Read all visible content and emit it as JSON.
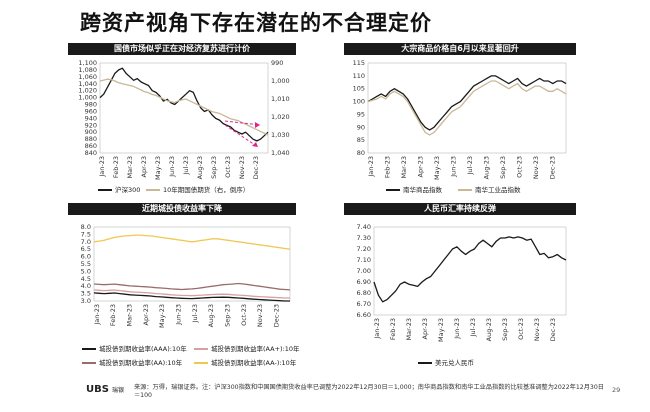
{
  "slide_title": "跨资产视角下存在潜在的不合理定价",
  "footer": {
    "logo": "UBS",
    "logo_sub": "瑞银",
    "source": "来源：万得，瑞银证券。注：沪深300指数和中国国债期货收益率已调整为2022年12月30日＝1,000；南华商品指数和南华工业品指数的比较基准调整为2022年12月30日＝100",
    "page": "29"
  },
  "colors": {
    "black": "#1a1a1a",
    "tan": "#c9b896",
    "rose": "#d8a0a0",
    "pink": "#e0258a",
    "mustard": "#f0c850",
    "title_bar": "#1a1a1a"
  },
  "chart_data": [
    {
      "type": "line",
      "title": "国债市场似乎正在对经济复苏进行计价",
      "x_labels": [
        "Jan-23",
        "Feb-23",
        "Mar-23",
        "Apr-23",
        "May-23",
        "Jun-23",
        "Jul-23",
        "Aug-23",
        "Sep-23",
        "Oct-23",
        "Nov-23",
        "Dec-23"
      ],
      "y_left": {
        "ticks": [
          "840",
          "860",
          "880",
          "900",
          "920",
          "940",
          "960",
          "980",
          "1,000",
          "1,020",
          "1,040",
          "1,060",
          "1,080",
          "1,100"
        ],
        "lim": [
          840,
          1100
        ]
      },
      "y_right": {
        "ticks": [
          "990",
          "1,000",
          "1,010",
          "1,020",
          "1,030",
          "1,040"
        ],
        "lim": [
          990,
          1040
        ],
        "reversed": true
      },
      "series": [
        {
          "name": "沪深300",
          "axis": "left",
          "color": "#1a1a1a",
          "values": [
            1000,
            1010,
            1030,
            1050,
            1070,
            1080,
            1085,
            1070,
            1060,
            1050,
            1055,
            1045,
            1040,
            1035,
            1020,
            1015,
            1005,
            990,
            995,
            985,
            980,
            990,
            1000,
            1010,
            1020,
            1015,
            990,
            970,
            960,
            965,
            950,
            940,
            935,
            925,
            920,
            915,
            905,
            900,
            895,
            900,
            890,
            880,
            875,
            880,
            890,
            900
          ]
        },
        {
          "name": "10年期国债期货（右，倒序）",
          "axis": "right",
          "color": "#c9b896",
          "values": [
            1000,
            999.5,
            999,
            999.2,
            1000,
            1001,
            1001.5,
            1002,
            1002.5,
            1003,
            1004,
            1005,
            1006,
            1006.5,
            1007.5,
            1008,
            1009,
            1010,
            1011,
            1011.5,
            1012,
            1011,
            1010.5,
            1010,
            1011,
            1012,
            1013,
            1014,
            1015,
            1016,
            1017,
            1017.5,
            1018,
            1019,
            1020,
            1021,
            1021.5,
            1022,
            1023,
            1024,
            1025,
            1026,
            1027,
            1028,
            1029,
            1030
          ]
        }
      ],
      "annotations": [
        {
          "kind": "dashed-arrow",
          "color": "#e0258a"
        },
        {
          "kind": "dashed-arrow",
          "color": "#e0258a"
        }
      ]
    },
    {
      "type": "line",
      "title": "大宗商品价格自6月以来显著回升",
      "x_labels": [
        "Jan-23",
        "Feb-23",
        "Mar-23",
        "Apr-23",
        "May-23",
        "Jun-23",
        "Jul-23",
        "Aug-23",
        "Sep-23",
        "Oct-23",
        "Nov-23",
        "Dec-23"
      ],
      "y_left": {
        "ticks": [
          "80",
          "85",
          "90",
          "95",
          "100",
          "105",
          "110",
          "115"
        ],
        "lim": [
          80,
          115
        ]
      },
      "series": [
        {
          "name": "南华商品指数",
          "color": "#1a1a1a",
          "values": [
            100,
            101,
            102,
            103,
            102,
            104,
            105,
            104,
            103,
            101,
            98,
            95,
            92,
            90,
            89,
            90,
            92,
            94,
            96,
            98,
            99,
            100,
            102,
            104,
            106,
            107,
            108,
            109,
            110,
            110,
            109,
            108,
            107,
            108,
            109,
            107,
            106,
            107,
            108,
            109,
            108,
            108,
            107,
            108,
            108,
            107
          ]
        },
        {
          "name": "南华工业品指数",
          "color": "#c9b896",
          "values": [
            100,
            100.5,
            101,
            102,
            101,
            103,
            104,
            103,
            102,
            100,
            97,
            94,
            91,
            88,
            87,
            88,
            90,
            92,
            94,
            96,
            97,
            98,
            100,
            102,
            104,
            105,
            106,
            107,
            108,
            108,
            107,
            106,
            105,
            106,
            107,
            105,
            104,
            105,
            106,
            106,
            105,
            104,
            104,
            105,
            104,
            103
          ]
        }
      ]
    },
    {
      "type": "line",
      "title": "近期城投债收益率下降",
      "x_labels": [
        "Jan-23",
        "Feb-23",
        "Mar-23",
        "Apr-23",
        "May-23",
        "Jun-23",
        "Jul-23",
        "Aug-23",
        "Sep-23",
        "Oct-23",
        "Nov-23",
        "Dec-23"
      ],
      "y_left": {
        "ticks": [
          "3.0",
          "3.5",
          "4.0",
          "4.5",
          "5.0",
          "5.5",
          "6.0",
          "6.5",
          "7.0",
          "7.5",
          "8.0"
        ],
        "lim": [
          3.0,
          8.0
        ]
      },
      "series": [
        {
          "name": "城投债到期收益率(AAA):10年",
          "color": "#1a1a1a",
          "values": [
            3.55,
            3.52,
            3.5,
            3.52,
            3.54,
            3.5,
            3.46,
            3.42,
            3.4,
            3.38,
            3.36,
            3.34,
            3.3,
            3.28,
            3.25,
            3.22,
            3.2,
            3.18,
            3.17,
            3.16,
            3.18,
            3.2,
            3.22,
            3.24,
            3.25,
            3.26,
            3.25,
            3.22,
            3.2,
            3.18,
            3.15,
            3.12,
            3.1,
            3.08,
            3.06,
            3.04,
            3.02,
            3.0,
            3.0
          ]
        },
        {
          "name": "城投债到期收益率(AA+):10年",
          "color": "#d8a0a0",
          "values": [
            3.75,
            3.72,
            3.7,
            3.72,
            3.74,
            3.7,
            3.66,
            3.62,
            3.6,
            3.58,
            3.56,
            3.54,
            3.5,
            3.48,
            3.45,
            3.42,
            3.4,
            3.38,
            3.37,
            3.36,
            3.38,
            3.4,
            3.42,
            3.44,
            3.45,
            3.46,
            3.45,
            3.42,
            3.4,
            3.38,
            3.35,
            3.32,
            3.3,
            3.28,
            3.26,
            3.24,
            3.22,
            3.2,
            3.2
          ]
        },
        {
          "name": "城投债到期收益率(AA):10年",
          "color": "#9a6b6b",
          "values": [
            4.15,
            4.12,
            4.1,
            4.12,
            4.14,
            4.1,
            4.06,
            4.02,
            4.0,
            3.98,
            3.96,
            3.94,
            3.9,
            3.88,
            3.85,
            3.82,
            3.8,
            3.78,
            3.8,
            3.82,
            3.85,
            3.9,
            3.95,
            4.0,
            4.05,
            4.1,
            4.12,
            4.15,
            4.18,
            4.15,
            4.1,
            4.05,
            4.0,
            3.95,
            3.9,
            3.85,
            3.8,
            3.78,
            3.75
          ]
        },
        {
          "name": "城投债到期收益率(AA-):10年",
          "color": "#f0c850",
          "values": [
            7.0,
            7.05,
            7.1,
            7.2,
            7.3,
            7.35,
            7.4,
            7.42,
            7.45,
            7.45,
            7.42,
            7.4,
            7.35,
            7.3,
            7.25,
            7.2,
            7.15,
            7.1,
            7.05,
            7.0,
            7.05,
            7.1,
            7.15,
            7.2,
            7.2,
            7.15,
            7.1,
            7.05,
            7.0,
            6.95,
            6.9,
            6.85,
            6.8,
            6.75,
            6.7,
            6.65,
            6.6,
            6.55,
            6.5
          ]
        }
      ]
    },
    {
      "type": "line",
      "title": "人民币汇率持续反弹",
      "x_labels": [
        "Jan-23",
        "Feb-23",
        "Mar-23",
        "Apr-23",
        "May-23",
        "Jun-23",
        "Jul-23",
        "Aug-23",
        "Sep-23",
        "Oct-23",
        "Nov-23",
        "Dec-23"
      ],
      "y_left": {
        "ticks": [
          "6.60",
          "6.70",
          "6.80",
          "6.90",
          "7.00",
          "7.10",
          "7.20",
          "7.30",
          "7.40"
        ],
        "lim": [
          6.6,
          7.4
        ]
      },
      "series": [
        {
          "name": "美元兑人民币",
          "color": "#1a1a1a",
          "values": [
            6.9,
            6.78,
            6.72,
            6.74,
            6.78,
            6.82,
            6.88,
            6.9,
            6.88,
            6.87,
            6.86,
            6.9,
            6.93,
            6.95,
            7.0,
            7.05,
            7.1,
            7.15,
            7.2,
            7.22,
            7.18,
            7.15,
            7.18,
            7.2,
            7.25,
            7.28,
            7.25,
            7.22,
            7.27,
            7.3,
            7.3,
            7.31,
            7.3,
            7.31,
            7.3,
            7.28,
            7.29,
            7.22,
            7.15,
            7.16,
            7.12,
            7.13,
            7.15,
            7.12,
            7.1
          ]
        }
      ]
    }
  ]
}
